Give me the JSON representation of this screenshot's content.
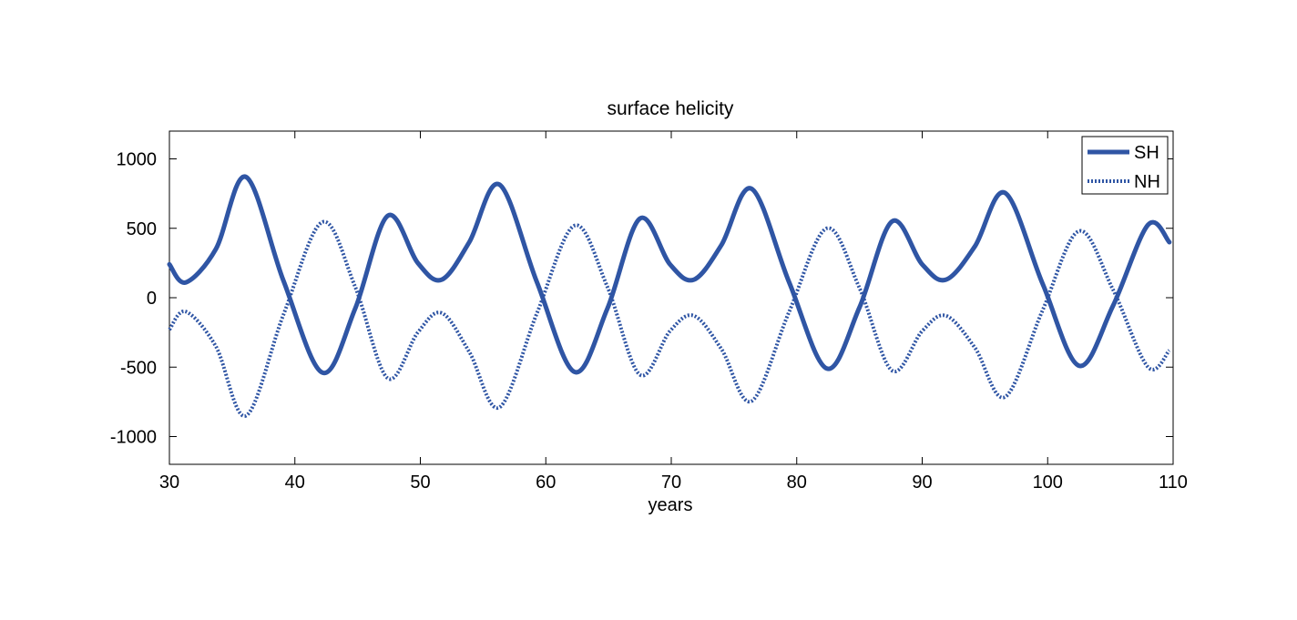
{
  "chart_data": {
    "type": "line",
    "title": "surface helicity",
    "xlabel": "years",
    "ylabel": "",
    "xlim": [
      30,
      110
    ],
    "ylim": [
      -1200,
      1200
    ],
    "xticks": [
      30,
      40,
      50,
      60,
      70,
      80,
      90,
      100,
      110
    ],
    "yticks": [
      -1000,
      -500,
      0,
      500,
      1000
    ],
    "legend_position": "top-right",
    "grid": false,
    "series": [
      {
        "name": "SH",
        "style": "solid-thick",
        "color": "#2f55a4",
        "x": [
          30,
          31.3,
          33.7,
          36.1,
          39.1,
          42.2,
          44.8,
          47.4,
          49.8,
          51.7,
          53.9,
          56.3,
          59.3,
          62.3,
          64.9,
          67.5,
          69.9,
          71.8,
          74.0,
          76.4,
          79.4,
          82.4,
          85.0,
          87.6,
          90.0,
          91.9,
          94.2,
          96.6,
          99.6,
          102.5,
          105.2,
          108.0,
          109.7
        ],
        "y": [
          240,
          110,
          350,
          870,
          120,
          -540,
          -80,
          590,
          250,
          130,
          400,
          815,
          110,
          -535,
          -80,
          570,
          240,
          130,
          380,
          785,
          110,
          -510,
          -70,
          550,
          240,
          130,
          370,
          755,
          100,
          -490,
          -60,
          525,
          400
        ]
      },
      {
        "name": "NH",
        "style": "dotted",
        "color": "#2f55a4",
        "x": [
          30,
          31.3,
          33.7,
          36.1,
          39.1,
          42.2,
          44.8,
          47.4,
          49.8,
          51.7,
          53.9,
          56.3,
          59.3,
          62.3,
          64.9,
          67.5,
          69.9,
          71.8,
          74.0,
          76.4,
          79.4,
          82.4,
          85.0,
          87.6,
          90.0,
          91.9,
          94.2,
          96.6,
          99.6,
          102.5,
          105.2,
          108.0,
          109.7
        ],
        "y": [
          -230,
          -100,
          -350,
          -850,
          -120,
          545,
          80,
          -580,
          -250,
          -110,
          -390,
          -790,
          -110,
          520,
          80,
          -555,
          -240,
          -130,
          -370,
          -745,
          -100,
          500,
          70,
          -525,
          -240,
          -130,
          -360,
          -715,
          -90,
          480,
          60,
          -500,
          -380
        ]
      }
    ]
  }
}
